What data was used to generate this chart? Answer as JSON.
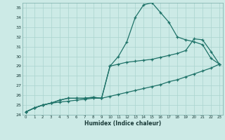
{
  "xlabel": "Humidex (Indice chaleur)",
  "bg_color": "#cceae6",
  "grid_color": "#aad4ce",
  "line_color": "#1e7268",
  "xlim_min": 0,
  "xlim_max": 23,
  "ylim_min": 24,
  "ylim_max": 35.5,
  "xticks": [
    0,
    1,
    2,
    3,
    4,
    5,
    6,
    7,
    8,
    9,
    10,
    11,
    12,
    13,
    14,
    15,
    16,
    17,
    18,
    19,
    20,
    21,
    22,
    23
  ],
  "yticks": [
    24,
    25,
    26,
    27,
    28,
    29,
    30,
    31,
    32,
    33,
    34,
    35
  ],
  "x": [
    0,
    1,
    2,
    3,
    4,
    5,
    6,
    7,
    8,
    9,
    10,
    11,
    12,
    13,
    14,
    15,
    16,
    17,
    18,
    19,
    20,
    21,
    22,
    23
  ],
  "y_top": [
    24.3,
    24.7,
    25.0,
    25.2,
    25.5,
    25.7,
    25.7,
    25.7,
    25.8,
    25.7,
    29.0,
    30.0,
    31.5,
    34.0,
    35.3,
    35.5,
    34.5,
    33.5,
    32.0,
    31.7,
    31.5,
    31.2,
    29.8,
    29.2
  ],
  "y_mid": [
    24.3,
    24.7,
    25.0,
    25.2,
    25.5,
    25.7,
    25.7,
    25.7,
    25.8,
    25.7,
    29.0,
    29.2,
    29.4,
    29.5,
    29.6,
    29.7,
    29.9,
    30.1,
    30.3,
    30.6,
    31.8,
    31.7,
    30.5,
    29.2
  ],
  "y_bot": [
    24.3,
    24.7,
    25.0,
    25.2,
    25.3,
    25.4,
    25.5,
    25.6,
    25.7,
    25.7,
    25.9,
    26.1,
    26.3,
    26.5,
    26.7,
    26.9,
    27.1,
    27.4,
    27.6,
    27.9,
    28.2,
    28.5,
    28.8,
    29.2
  ]
}
